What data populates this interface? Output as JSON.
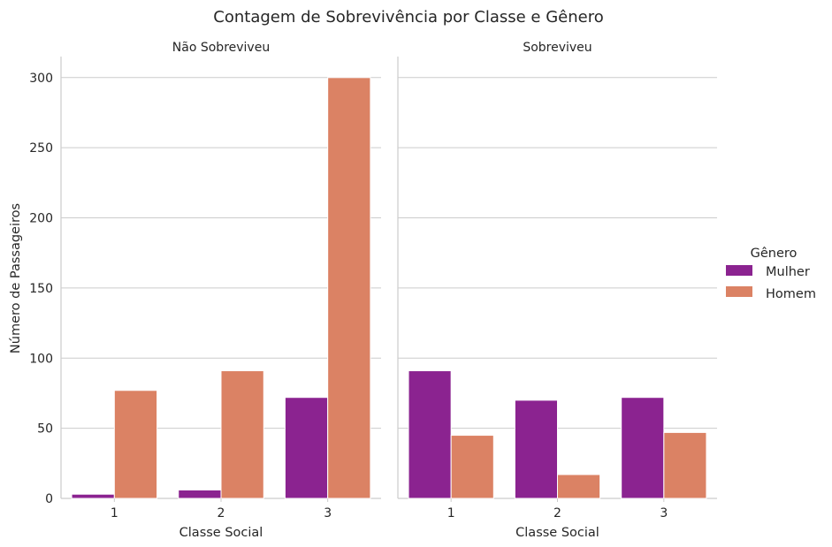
{
  "chart_data": {
    "type": "bar",
    "title": "Contagem de Sobrevivência por Classe e Gênero",
    "facets": [
      {
        "title": "Não Sobreviveu",
        "xlabel": "Classe Social",
        "categories": [
          "1",
          "2",
          "3"
        ],
        "series": [
          {
            "name": "Mulher",
            "values": [
              3,
              6,
              72
            ]
          },
          {
            "name": "Homem",
            "values": [
              77,
              91,
              300
            ]
          }
        ]
      },
      {
        "title": "Sobreviveu",
        "xlabel": "Classe Social",
        "categories": [
          "1",
          "2",
          "3"
        ],
        "series": [
          {
            "name": "Mulher",
            "values": [
              91,
              70,
              72
            ]
          },
          {
            "name": "Homem",
            "values": [
              45,
              17,
              47
            ]
          }
        ]
      }
    ],
    "ylabel": "Número de Passageiros",
    "ylim": [
      0,
      315
    ],
    "yticks": [
      0,
      50,
      100,
      150,
      200,
      250,
      300
    ],
    "grid": true,
    "legend": {
      "title": "Gênero",
      "placement": "right",
      "entries": [
        "Mulher",
        "Homem"
      ]
    },
    "colors": {
      "Mulher": "#8b2390",
      "Homem": "#db8264"
    }
  }
}
